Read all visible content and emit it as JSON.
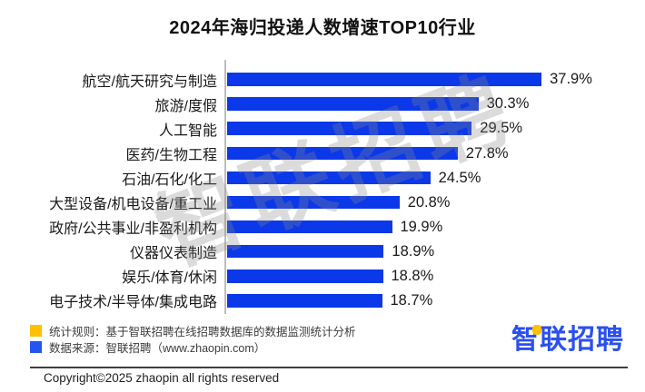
{
  "title": "2024年海归投递人数增速TOP10行业",
  "watermark": "智联招聘",
  "chart_data": {
    "type": "bar",
    "orientation": "horizontal",
    "title": "2024年海归投递人数增速TOP10行业",
    "categories": [
      "航空/航天研究与制造",
      "旅游/度假",
      "人工智能",
      "医药/生物工程",
      "石油/石化/化工",
      "大型设备/机电设备/重工业",
      "政府/公共事业/非盈利机构",
      "仪器仪表制造",
      "娱乐/体育/休闲",
      "电子技术/半导体/集成电路"
    ],
    "values": [
      37.9,
      30.3,
      29.5,
      27.8,
      24.5,
      20.8,
      19.9,
      18.9,
      18.8,
      18.7
    ],
    "value_labels": [
      "37.9%",
      "30.3%",
      "29.5%",
      "27.8%",
      "24.5%",
      "20.8%",
      "19.9%",
      "18.9%",
      "18.8%",
      "18.7%"
    ],
    "xlabel": "",
    "ylabel": "",
    "xlim": [
      0,
      41
    ],
    "grid": false,
    "legend_position": "none",
    "bar_color": "#0B38E8"
  },
  "legend": [
    {
      "color": "#FFC000",
      "label": "统计规则：基于智联招聘在线招聘数据库的数据监测统计分析"
    },
    {
      "color": "#2356F0",
      "label": "数据来源：智联招聘（www.zhaopin.com）"
    }
  ],
  "footer": {
    "logo_text": "智联招聘",
    "copyright": "Copyright©2025 zhaopin all rights reserved"
  }
}
